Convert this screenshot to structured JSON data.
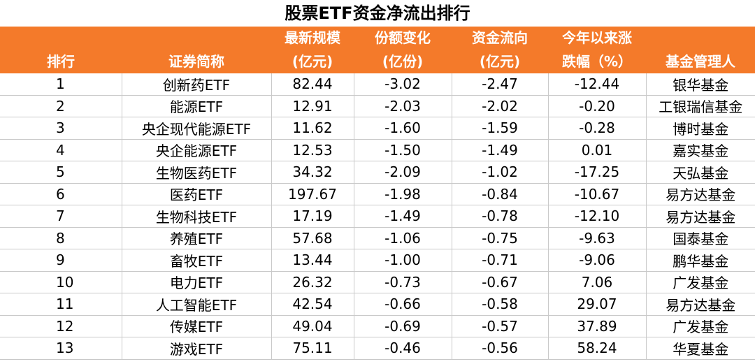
{
  "title": "股票ETF资金净流出排行",
  "header": {
    "row1": [
      "",
      "",
      "最新规模",
      "份额变化",
      "资金流向",
      "今年以来涨",
      ""
    ],
    "row2": [
      "排行",
      "证券简称",
      "(亿元)",
      "(亿份)",
      "(亿元)",
      "跌幅（%）",
      "基金管理人"
    ]
  },
  "rows": [
    [
      "1",
      "创新药ETF",
      "82.44",
      "-3.02",
      "-2.47",
      "-12.44",
      "银华基金"
    ],
    [
      "2",
      "能源ETF",
      "12.91",
      "-2.03",
      "-2.02",
      "-0.20",
      "工银瑞信基金"
    ],
    [
      "3",
      "央企现代能源ETF",
      "11.62",
      "-1.60",
      "-1.59",
      "-0.28",
      "博时基金"
    ],
    [
      "4",
      "央企能源ETF",
      "12.53",
      "-1.50",
      "-1.49",
      "0.01",
      "嘉实基金"
    ],
    [
      "5",
      "生物医药ETF",
      "34.32",
      "-2.09",
      "-1.02",
      "-17.25",
      "天弘基金"
    ],
    [
      "6",
      "医药ETF",
      "197.67",
      "-1.98",
      "-0.84",
      "-10.67",
      "易方达基金"
    ],
    [
      "7",
      "生物科技ETF",
      "17.19",
      "-1.49",
      "-0.78",
      "-12.10",
      "易方达基金"
    ],
    [
      "8",
      "养殖ETF",
      "57.68",
      "-1.06",
      "-0.75",
      "-9.63",
      "国泰基金"
    ],
    [
      "9",
      "畜牧ETF",
      "13.44",
      "-1.00",
      "-0.71",
      "-9.06",
      "鹏华基金"
    ],
    [
      "10",
      "电力ETF",
      "26.32",
      "-0.73",
      "-0.67",
      "7.06",
      "广发基金"
    ],
    [
      "11",
      "人工智能ETF",
      "42.54",
      "-0.66",
      "-0.58",
      "29.07",
      "易方达基金"
    ],
    [
      "12",
      "传媒ETF",
      "49.04",
      "-0.69",
      "-0.57",
      "37.89",
      "广发基金"
    ],
    [
      "13",
      "游戏ETF",
      "75.11",
      "-0.46",
      "-0.56",
      "58.24",
      "华夏基金"
    ]
  ],
  "colors": {
    "header_bg": "#f47a2a",
    "header_text": "#ffffff",
    "grid": "#c9c9c9"
  }
}
